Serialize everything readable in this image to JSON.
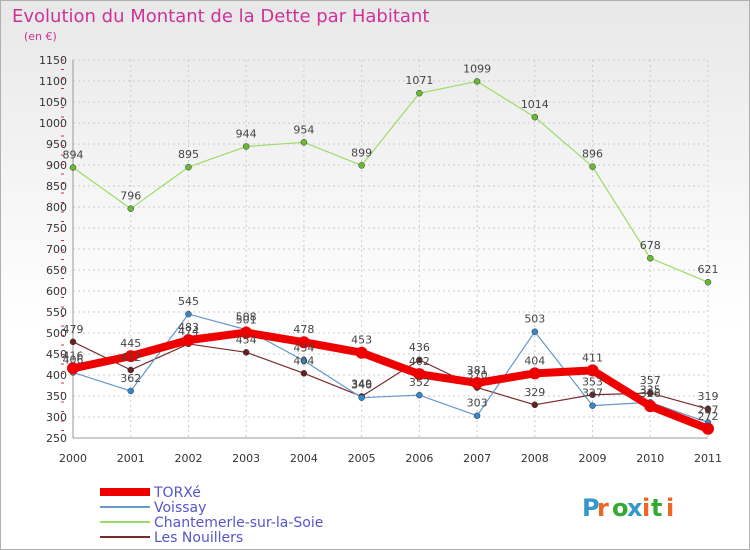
{
  "chart_data": {
    "type": "line",
    "title": "Evolution du Montant de la Dette par Habitant",
    "subtitle": "(en €)",
    "categories": [
      "2000",
      "2001",
      "2002",
      "2003",
      "2004",
      "2005",
      "2006",
      "2007",
      "2008",
      "2009",
      "2010",
      "2011"
    ],
    "ylim": [
      250,
      1150
    ],
    "yticks": [
      250,
      300,
      350,
      400,
      450,
      500,
      550,
      600,
      650,
      700,
      750,
      800,
      850,
      900,
      950,
      1000,
      1050,
      1100,
      1150
    ],
    "grid": true,
    "legend_position": "bottom-left",
    "series": [
      {
        "name": "Chantemerle-sur-la-Soie",
        "color": "#99dd66",
        "marker": "#66bb33",
        "width": 1.2,
        "values": [
          894,
          796,
          895,
          944,
          954,
          899,
          1071,
          1099,
          1014,
          896,
          678,
          621
        ]
      },
      {
        "name": "Les Nouillers",
        "color": "#7a2b2b",
        "marker": "#6a1f1f",
        "width": 1.2,
        "values": [
          479,
          412,
          474,
          454,
          404,
          349,
          436,
          370,
          329,
          353,
          357,
          319
        ]
      },
      {
        "name": "Voissay",
        "color": "#6699cc",
        "marker": "#3388cc",
        "width": 1.2,
        "values": [
          406,
          362,
          545,
          508,
          434,
          346,
          352,
          303,
          503,
          327,
          335,
          287
        ]
      },
      {
        "name": "TORXé",
        "color": "#ee0000",
        "marker": "#ee0000",
        "width": 8,
        "values": [
          416,
          445,
          483,
          501,
          478,
          453,
          402,
          381,
          404,
          411,
          326,
          272
        ]
      }
    ]
  },
  "legend": [
    "TORXé",
    "Voissay",
    "Chantemerle-sur-la-Soie",
    "Les Nouillers"
  ],
  "logo": {
    "text": "Proxiti"
  }
}
